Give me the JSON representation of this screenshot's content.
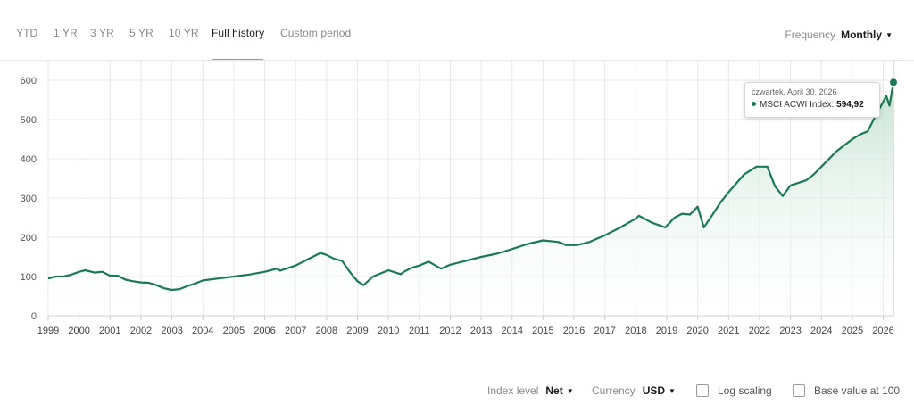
{
  "tabs": [
    {
      "label": "YTD",
      "active": false
    },
    {
      "label": "1 YR",
      "active": false
    },
    {
      "label": "3 YR",
      "active": false
    },
    {
      "label": "5 YR",
      "active": false
    },
    {
      "label": "10 YR",
      "active": false
    },
    {
      "label": "Full history",
      "active": true
    },
    {
      "label": "Custom period",
      "active": false
    }
  ],
  "frequency": {
    "label": "Frequency",
    "value": "Monthly"
  },
  "tooltip": {
    "date": "czwartek, April 30, 2026",
    "series": "MSCI ACWI Index:",
    "value": "594,92"
  },
  "controls": {
    "index_level": {
      "label": "Index level",
      "value": "Net"
    },
    "currency": {
      "label": "Currency",
      "value": "USD"
    },
    "log_scaling": {
      "label": "Log scaling",
      "checked": false
    },
    "base_value": {
      "label": "Base value at 100",
      "checked": false
    }
  },
  "colors": {
    "line": "#1a7a55",
    "fill_top": "#bfe0cf",
    "grid": "#e8e8e8"
  },
  "chart_data": {
    "type": "area",
    "title": "",
    "xlabel": "",
    "ylabel": "",
    "ylim": [
      0,
      650
    ],
    "yticks": [
      0,
      100,
      200,
      300,
      400,
      500,
      600
    ],
    "xticks": [
      "1999",
      "2000",
      "2001",
      "2002",
      "2003",
      "2004",
      "2005",
      "2006",
      "2007",
      "2008",
      "2009",
      "2010",
      "2011",
      "2012",
      "2013",
      "2014",
      "2015",
      "2016",
      "2017",
      "2018",
      "2019",
      "2020",
      "2021",
      "2022",
      "2023",
      "2024",
      "2025",
      "2026"
    ],
    "xlim": [
      1999.0,
      2026.33
    ],
    "grid": true,
    "series": [
      {
        "name": "MSCI ACWI Index",
        "x": [
          1999.0,
          1999.25,
          1999.5,
          1999.75,
          2000.0,
          2000.2,
          2000.5,
          2000.75,
          2001.0,
          2001.25,
          2001.5,
          2001.75,
          2002.0,
          2002.25,
          2002.5,
          2002.75,
          2003.0,
          2003.25,
          2003.5,
          2003.75,
          2004.0,
          2004.5,
          2005.0,
          2005.5,
          2006.0,
          2006.4,
          2006.5,
          2007.0,
          2007.5,
          2007.8,
          2008.0,
          2008.25,
          2008.5,
          2008.75,
          2009.0,
          2009.2,
          2009.5,
          2009.75,
          2010.0,
          2010.4,
          2010.5,
          2010.75,
          2011.0,
          2011.3,
          2011.7,
          2012.0,
          2012.5,
          2013.0,
          2013.5,
          2014.0,
          2014.5,
          2015.0,
          2015.5,
          2015.75,
          2016.1,
          2016.5,
          2017.0,
          2017.5,
          2018.0,
          2018.1,
          2018.5,
          2018.95,
          2019.25,
          2019.5,
          2019.75,
          2020.0,
          2020.2,
          2020.5,
          2020.75,
          2021.0,
          2021.5,
          2021.9,
          2022.25,
          2022.5,
          2022.75,
          2023.0,
          2023.5,
          2023.75,
          2024.0,
          2024.5,
          2025.0,
          2025.25,
          2025.5,
          2025.75,
          2026.0,
          2026.1,
          2026.2,
          2026.33
        ],
        "values": [
          95,
          100,
          100,
          105,
          112,
          116,
          110,
          112,
          102,
          102,
          92,
          88,
          85,
          84,
          78,
          70,
          66,
          68,
          76,
          82,
          90,
          95,
          100,
          105,
          112,
          120,
          115,
          128,
          148,
          160,
          155,
          145,
          140,
          112,
          88,
          78,
          100,
          108,
          116,
          106,
          112,
          122,
          128,
          138,
          120,
          130,
          140,
          150,
          158,
          170,
          183,
          192,
          188,
          180,
          180,
          188,
          205,
          225,
          248,
          255,
          238,
          225,
          250,
          260,
          258,
          278,
          225,
          260,
          290,
          315,
          360,
          380,
          380,
          330,
          305,
          332,
          345,
          360,
          380,
          420,
          450,
          462,
          470,
          510,
          545,
          560,
          535,
          594.92
        ]
      }
    ]
  }
}
